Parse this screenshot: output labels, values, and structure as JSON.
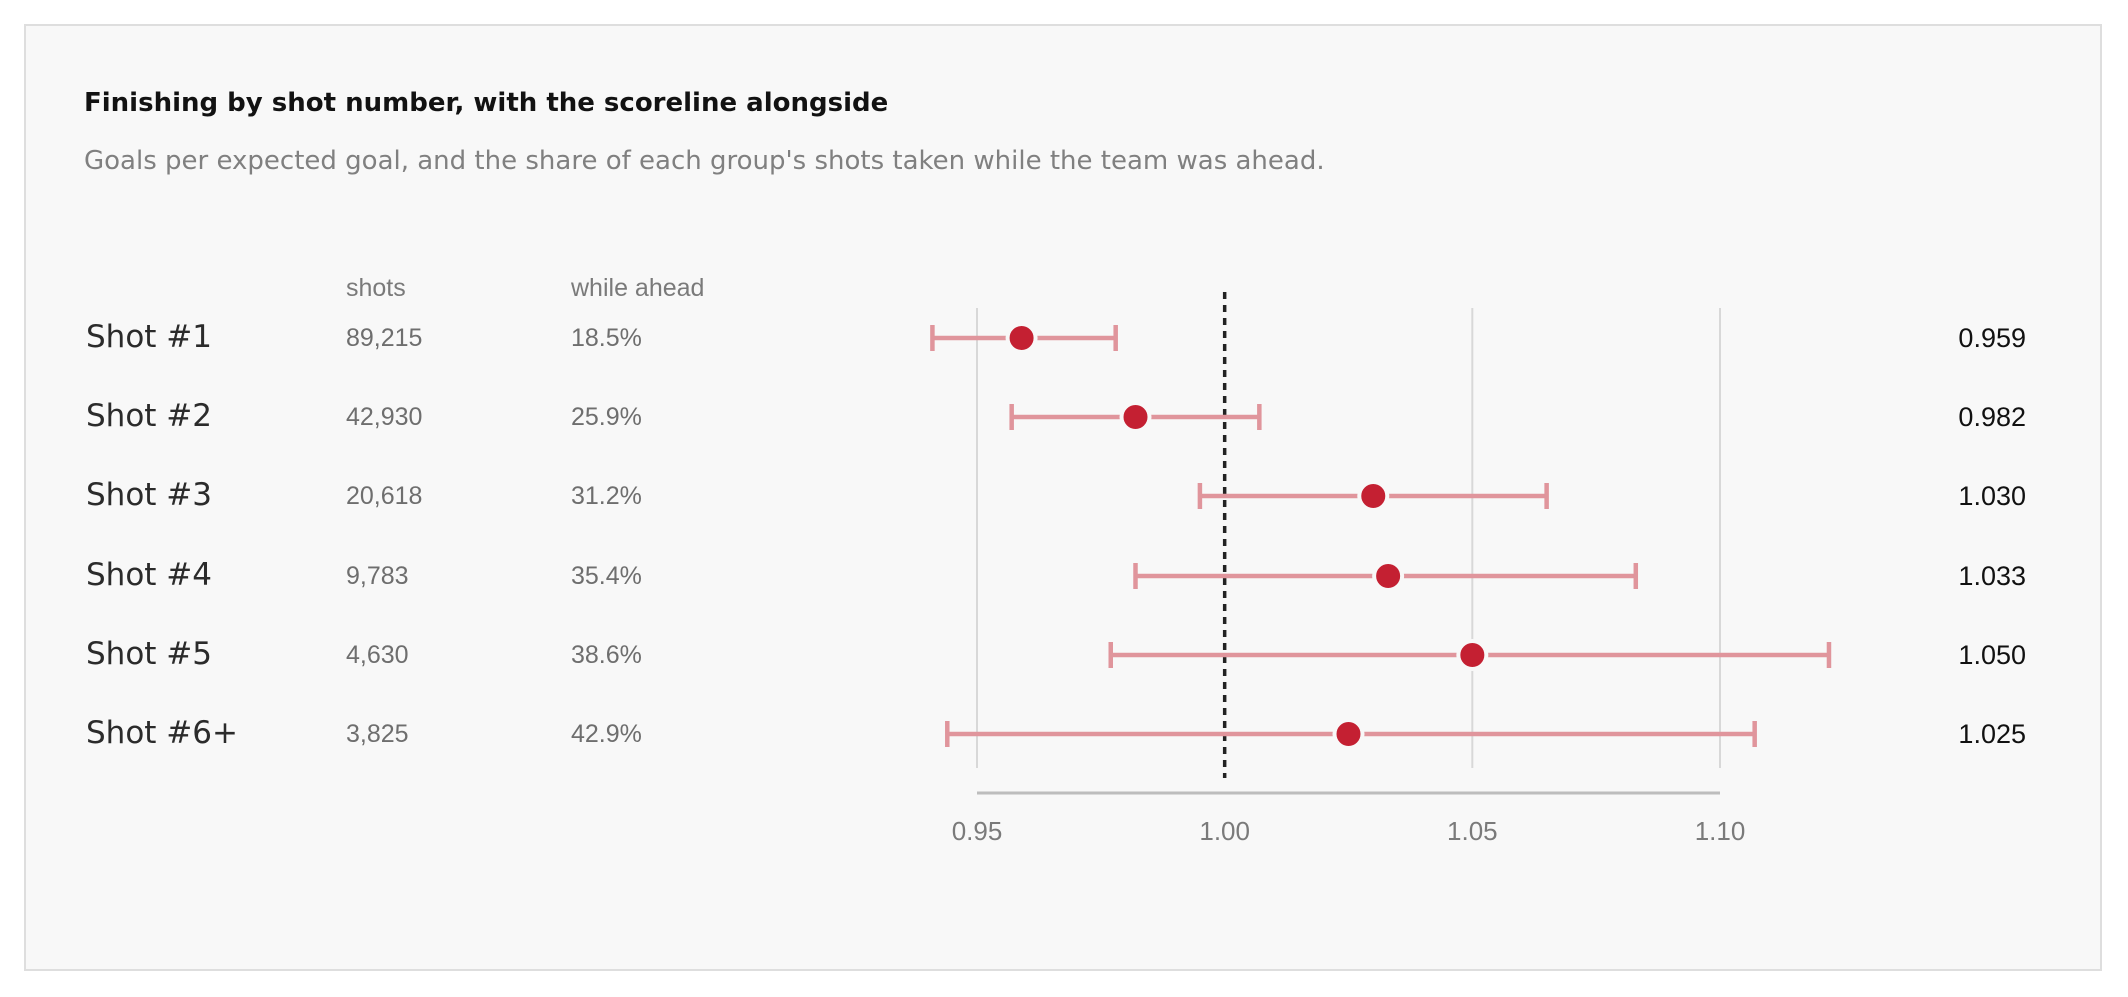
{
  "title": "Finishing by shot number, with the scoreline alongside",
  "subtitle": "Goals per expected goal, and the share of each group's shots taken while the team was ahead.",
  "columns": {
    "shots": "shots",
    "while_ahead": "while ahead"
  },
  "rows": [
    {
      "label": "Shot #1",
      "shots": "89,215",
      "while_ahead": "18.5%",
      "value_text": "0.959"
    },
    {
      "label": "Shot #2",
      "shots": "42,930",
      "while_ahead": "25.9%",
      "value_text": "0.982"
    },
    {
      "label": "Shot #3",
      "shots": "20,618",
      "while_ahead": "31.2%",
      "value_text": "1.030"
    },
    {
      "label": "Shot #4",
      "shots": "9,783",
      "while_ahead": "35.4%",
      "value_text": "1.033"
    },
    {
      "label": "Shot #5",
      "shots": "4,630",
      "while_ahead": "38.6%",
      "value_text": "1.050"
    },
    {
      "label": "Shot #6+",
      "shots": "3,825",
      "while_ahead": "42.9%",
      "value_text": "1.025"
    }
  ],
  "chart_data": {
    "type": "scatter",
    "categories": [
      "Shot #1",
      "Shot #2",
      "Shot #3",
      "Shot #4",
      "Shot #5",
      "Shot #6+"
    ],
    "values": [
      0.959,
      0.982,
      1.03,
      1.033,
      1.05,
      1.025
    ],
    "ci_low": [
      0.941,
      0.957,
      0.995,
      0.982,
      0.977,
      0.944
    ],
    "ci_high": [
      0.978,
      1.007,
      1.065,
      1.083,
      1.122,
      1.107
    ],
    "reference_line": 1.0,
    "xlim": [
      0.95,
      1.1
    ],
    "xticks": [
      "0.95",
      "1.00",
      "1.05",
      "1.10"
    ],
    "xtick_values": [
      0.95,
      1.0,
      1.05,
      1.1
    ],
    "grid": true,
    "colors": {
      "point": "#c42032",
      "interval": "#e0959c",
      "reference": "#222222",
      "grid": "#d8d8d8",
      "axis": "#bdbdbd"
    }
  }
}
